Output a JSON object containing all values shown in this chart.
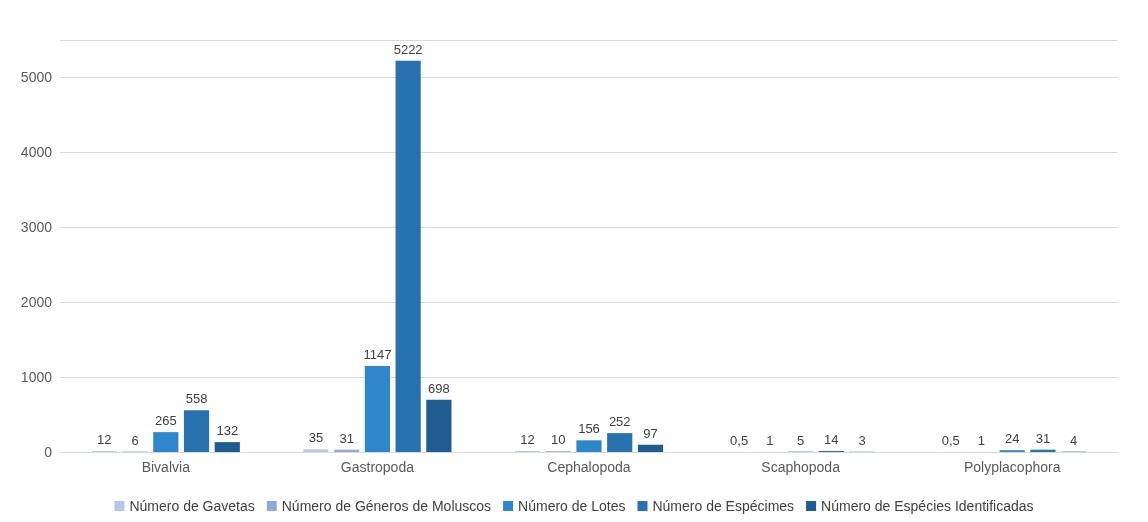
{
  "chart_data": {
    "type": "bar",
    "categories": [
      "Bivalvia",
      "Gastropoda",
      "Cephalopoda",
      "Scaphopoda",
      "Polyplacophora"
    ],
    "series": [
      {
        "name": "Número de Gavetas",
        "color": "#b4c7e7",
        "values": [
          12,
          35,
          12,
          0.5,
          0.5
        ],
        "value_labels": [
          "12",
          "35",
          "12",
          "0,5",
          "0,5"
        ]
      },
      {
        "name": "Número de Géneros de Moluscos",
        "color": "#8eaadb",
        "values": [
          6,
          31,
          10,
          1,
          1
        ],
        "value_labels": [
          "6",
          "31",
          "10",
          "1",
          "1"
        ]
      },
      {
        "name": "Número de Lotes",
        "color": "#2e86cb",
        "values": [
          265,
          1147,
          156,
          5,
          24
        ],
        "value_labels": [
          "265",
          "1147",
          "156",
          "5",
          "24"
        ]
      },
      {
        "name": "Número de Espécimes",
        "color": "#2771ae",
        "values": [
          558,
          5222,
          252,
          14,
          31
        ],
        "value_labels": [
          "558",
          "5222",
          "252",
          "14",
          "31"
        ]
      },
      {
        "name": "Número de Espécies Identificadas",
        "color": "#1e5c92",
        "values": [
          132,
          698,
          97,
          3,
          4
        ],
        "value_labels": [
          "132",
          "698",
          "97",
          "3",
          "4"
        ]
      }
    ],
    "ylim": [
      0,
      5500
    ],
    "yticks": [
      0,
      1000,
      2000,
      3000,
      4000,
      5000
    ],
    "grid": "y",
    "legend": "bottom"
  }
}
